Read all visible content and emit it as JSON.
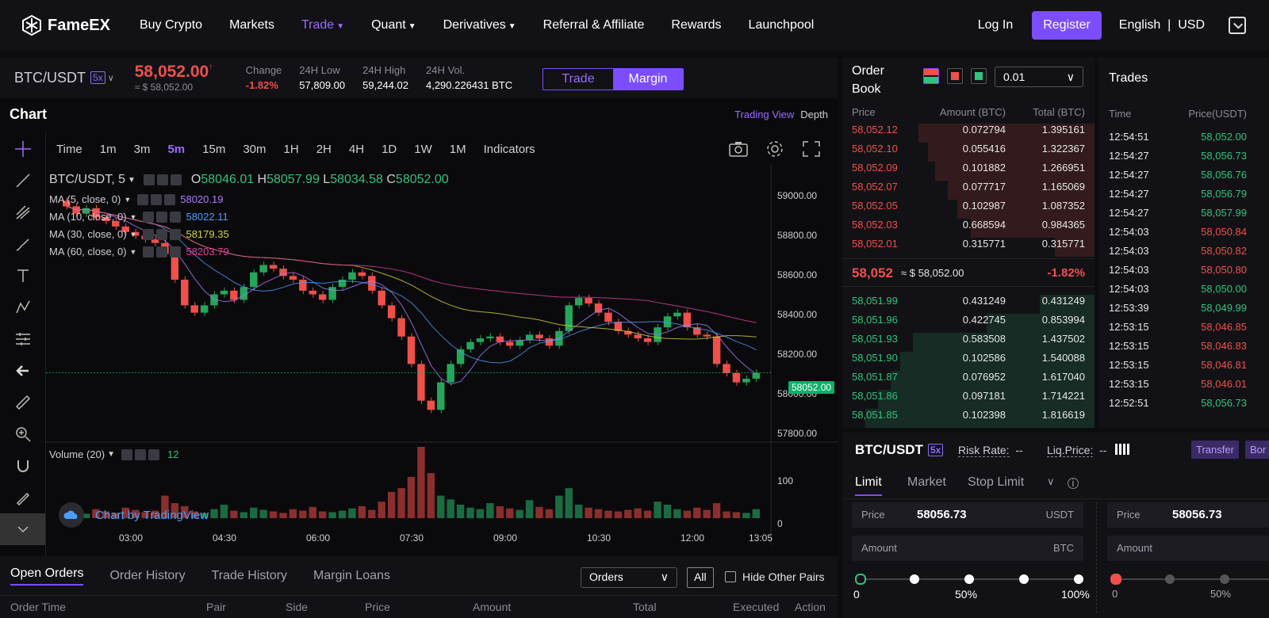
{
  "nav": {
    "logo": "FameEX",
    "items": [
      "Buy Crypto",
      "Markets",
      "Trade",
      "Quant",
      "Derivatives",
      "Referral & Affiliate",
      "Rewards",
      "Launchpool"
    ],
    "login": "Log In",
    "register": "Register",
    "language": "English",
    "currency": "USD",
    "accent": "#7c4dff"
  },
  "ticker": {
    "pair": "BTC/USDT",
    "leverage": "5x",
    "price": "58,052.00",
    "price_usd": "≈ $ 58,052.00",
    "change_label": "Change",
    "change": "-1.82%",
    "low_label": "24H Low",
    "low": "57,809.00",
    "high_label": "24H High",
    "high": "59,244.02",
    "vol_label": "24H Vol.",
    "vol": "4,290.226431 BTC",
    "mode_trade": "Trade",
    "mode_margin": "Margin"
  },
  "chart": {
    "title": "Chart",
    "trading_view": "Trading View",
    "depth": "Depth",
    "timeframes": [
      "Time",
      "1m",
      "3m",
      "5m",
      "15m",
      "30m",
      "1H",
      "2H",
      "4H",
      "1D",
      "1W",
      "1M",
      "Indicators"
    ],
    "active_timeframe": "5m",
    "symbol_label": "BTC/USDT, 5",
    "ohlc": {
      "o": "58046.01",
      "h": "58057.99",
      "l": "58034.58",
      "c": "58052.00"
    },
    "ma": [
      {
        "label": "MA (5, close, 0)",
        "value": "58020.19",
        "color": "#b07cff"
      },
      {
        "label": "MA (10, close, 0)",
        "value": "58022.11",
        "color": "#4a9fff"
      },
      {
        "label": "MA (30, close, 0)",
        "value": "58179.35",
        "color": "#d6d632"
      },
      {
        "label": "MA (60, close, 0)",
        "value": "58203.79",
        "color": "#e040a0"
      }
    ],
    "volume_label": "Volume (20)",
    "volume_value": "12",
    "badge": "Chart by TradingView",
    "y_ticks": [
      "59000.00",
      "58800.00",
      "58600.00",
      "58400.00",
      "58200.00",
      "58000.00",
      "57800.00"
    ],
    "vol_ticks": [
      "100",
      "0"
    ],
    "x_ticks": [
      "03:00",
      "04:30",
      "06:00",
      "07:30",
      "09:00",
      "10:30",
      "12:00",
      "13:05"
    ],
    "last_price": "58052.00"
  },
  "chart_data": {
    "type": "candlestick",
    "ylim": [
      57700,
      59100
    ],
    "close": [
      58960,
      58920,
      58950,
      58900,
      58880,
      58850,
      58820,
      58800,
      58780,
      58760,
      58700,
      58560,
      58420,
      58380,
      58420,
      58480,
      58500,
      58450,
      58520,
      58600,
      58640,
      58620,
      58580,
      58560,
      58500,
      58480,
      58450,
      58520,
      58560,
      58600,
      58580,
      58500,
      58420,
      58350,
      58250,
      58100,
      57900,
      57850,
      58000,
      58100,
      58180,
      58220,
      58240,
      58250,
      58220,
      58200,
      58230,
      58260,
      58240,
      58200,
      58280,
      58420,
      58460,
      58430,
      58380,
      58330,
      58280,
      58260,
      58240,
      58220,
      58300,
      58360,
      58380,
      58300,
      58260,
      58250,
      58100,
      58050,
      58000,
      58020,
      58052
    ],
    "volume": [
      8,
      10,
      6,
      12,
      9,
      7,
      14,
      11,
      8,
      10,
      30,
      20,
      16,
      9,
      7,
      12,
      18,
      10,
      8,
      14,
      11,
      9,
      7,
      12,
      10,
      15,
      9,
      8,
      10,
      13,
      16,
      11,
      22,
      35,
      40,
      55,
      95,
      60,
      30,
      25,
      18,
      14,
      12,
      20,
      16,
      13,
      11,
      24,
      15,
      12,
      30,
      40,
      18,
      14,
      12,
      10,
      9,
      11,
      13,
      10,
      22,
      18,
      12,
      10,
      14,
      11,
      20,
      9,
      8,
      7,
      12
    ]
  },
  "orderbook": {
    "title": "Order Book",
    "precision": "0.01",
    "cols": [
      "Price",
      "Amount (BTC)",
      "Total (BTC)"
    ],
    "asks": [
      [
        "58,052.12",
        "0.072794",
        "1.395161"
      ],
      [
        "58,052.10",
        "0.055416",
        "1.322367"
      ],
      [
        "58,052.09",
        "0.101882",
        "1.266951"
      ],
      [
        "58,052.07",
        "0.077717",
        "1.165069"
      ],
      [
        "58,052.05",
        "0.102987",
        "1.087352"
      ],
      [
        "58,052.03",
        "0.668594",
        "0.984365"
      ],
      [
        "58,052.01",
        "0.315771",
        "0.315771"
      ]
    ],
    "mid_price": "58,052",
    "mid_usd": "≈ $ 58,052.00",
    "mid_change": "-1.82%",
    "bids": [
      [
        "58,051.99",
        "0.431249",
        "0.431249"
      ],
      [
        "58,051.96",
        "0.422745",
        "0.853994"
      ],
      [
        "58,051.93",
        "0.583508",
        "1.437502"
      ],
      [
        "58,051.90",
        "0.102586",
        "1.540088"
      ],
      [
        "58,051.87",
        "0.076952",
        "1.617040"
      ],
      [
        "58,051.86",
        "0.097181",
        "1.714221"
      ],
      [
        "58,051.85",
        "0.102398",
        "1.816619"
      ]
    ]
  },
  "trades": {
    "title": "Trades",
    "cols": [
      "Time",
      "Price(USDT)"
    ],
    "rows": [
      {
        "t": "12:54:51",
        "p": "58,052.00",
        "side": "buy"
      },
      {
        "t": "12:54:27",
        "p": "58,056.73",
        "side": "buy"
      },
      {
        "t": "12:54:27",
        "p": "58,056.76",
        "side": "buy"
      },
      {
        "t": "12:54:27",
        "p": "58,056.79",
        "side": "buy"
      },
      {
        "t": "12:54:27",
        "p": "58,057.99",
        "side": "buy"
      },
      {
        "t": "12:54:03",
        "p": "58,050.84",
        "side": "sell"
      },
      {
        "t": "12:54:03",
        "p": "58,050.82",
        "side": "sell"
      },
      {
        "t": "12:54:03",
        "p": "58,050.80",
        "side": "sell"
      },
      {
        "t": "12:54:03",
        "p": "58,050.00",
        "side": "buy"
      },
      {
        "t": "12:53:39",
        "p": "58,049.99",
        "side": "buy"
      },
      {
        "t": "12:53:15",
        "p": "58,046.85",
        "side": "sell"
      },
      {
        "t": "12:53:15",
        "p": "58,046.83",
        "side": "sell"
      },
      {
        "t": "12:53:15",
        "p": "58,046.81",
        "side": "sell"
      },
      {
        "t": "12:53:15",
        "p": "58,046.01",
        "side": "sell"
      },
      {
        "t": "12:52:51",
        "p": "58,056.73",
        "side": "buy"
      }
    ]
  },
  "form": {
    "pair": "BTC/USDT",
    "leverage": "5x",
    "risk_label": "Risk Rate:",
    "risk_value": "--",
    "liq_label": "Liq.Price:",
    "liq_value": "--",
    "transfer": "Transfer",
    "borrow": "Bor",
    "tabs": [
      "Limit",
      "Market",
      "Stop Limit"
    ],
    "price_label": "Price",
    "price_value": "58056.73",
    "price_unit": "USDT",
    "amount_label": "Amount",
    "amount_unit": "BTC",
    "slider_labels": [
      "0",
      "50%",
      "100%"
    ]
  },
  "orders": {
    "tabs": [
      "Open Orders",
      "Order History",
      "Trade History",
      "Margin Loans"
    ],
    "filter": "Orders",
    "all": "All",
    "hide_other": "Hide Other Pairs",
    "cols": [
      "Order Time",
      "Pair",
      "Side",
      "Price",
      "Amount",
      "Total",
      "Executed",
      "Action"
    ]
  }
}
